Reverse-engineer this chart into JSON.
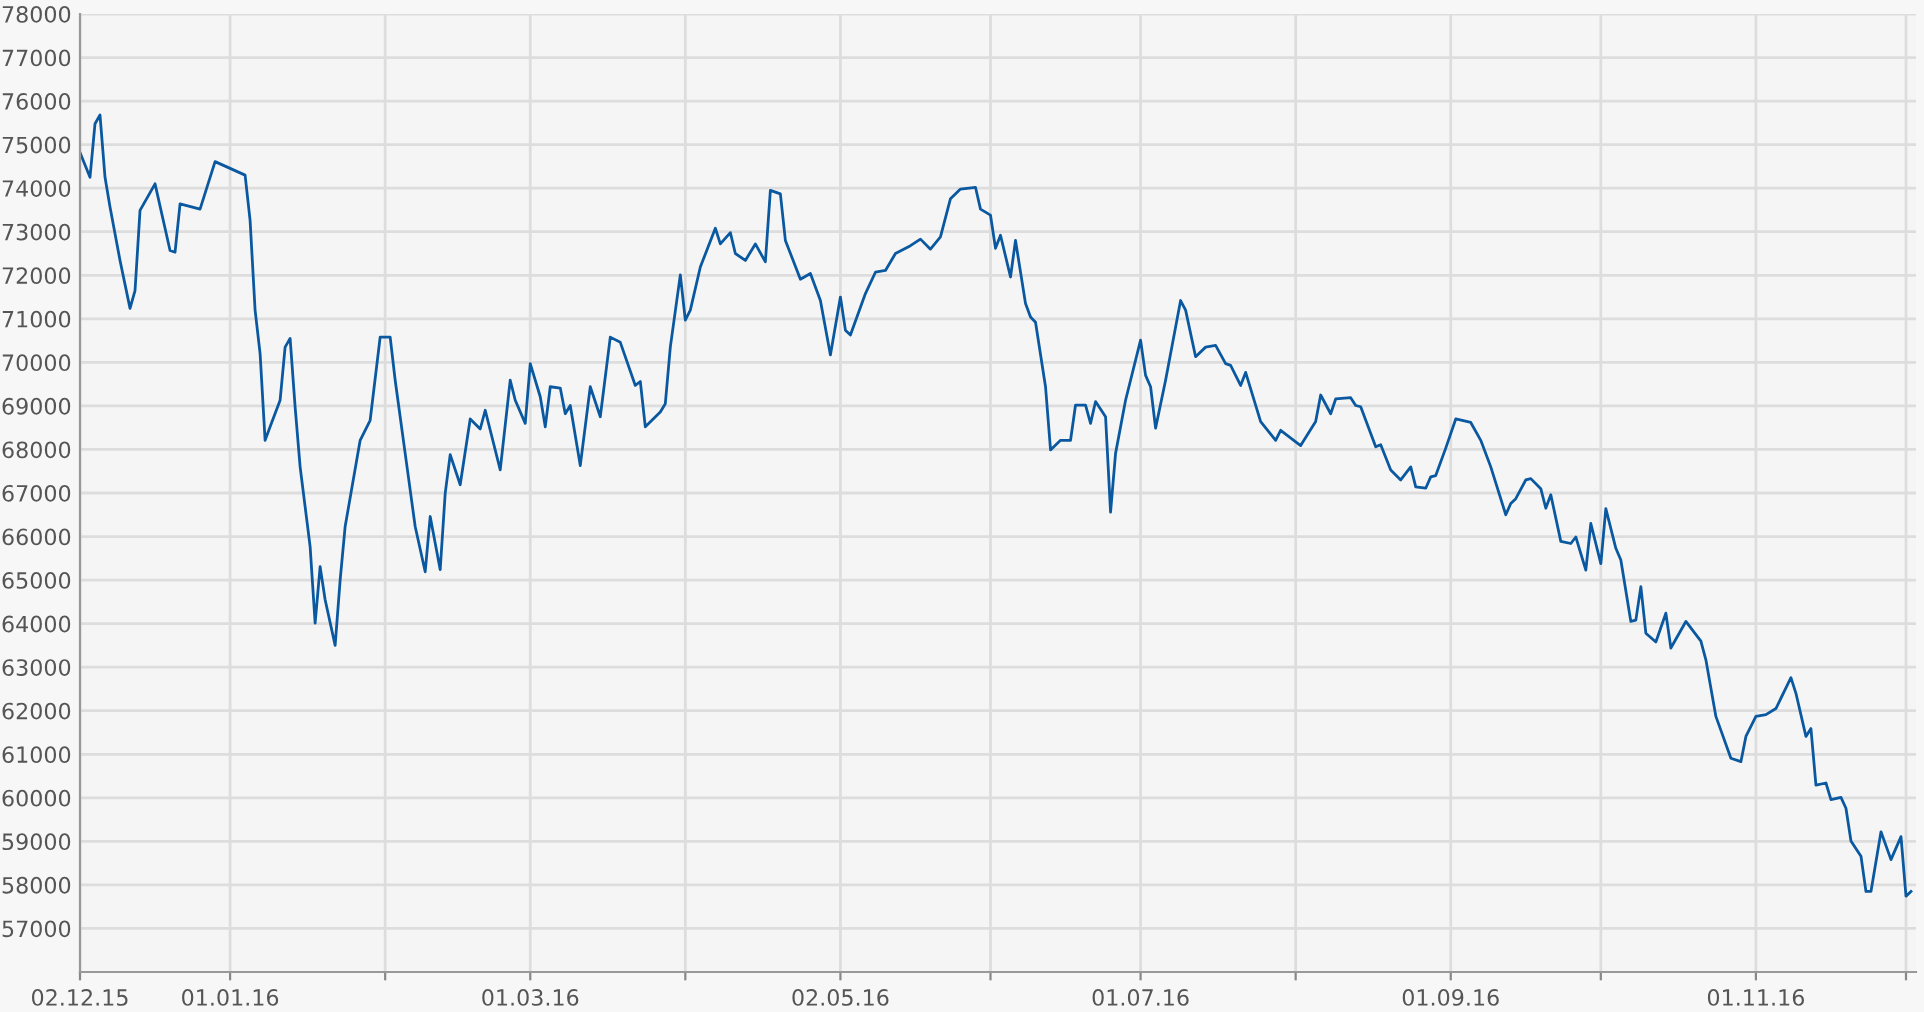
{
  "chart_data": {
    "type": "line",
    "x": [
      "2015-12-02",
      "2015-12-04",
      "2015-12-05",
      "2015-12-06",
      "2015-12-07",
      "2015-12-08",
      "2015-12-10",
      "2015-12-12",
      "2015-12-13",
      "2015-12-14",
      "2015-12-17",
      "2015-12-20",
      "2015-12-21",
      "2015-12-22",
      "2015-12-26",
      "2015-12-29",
      "2016-01-04",
      "2016-01-05",
      "2016-01-06",
      "2016-01-07",
      "2016-01-08",
      "2016-01-09",
      "2016-01-11",
      "2016-01-12",
      "2016-01-13",
      "2016-01-14",
      "2016-01-15",
      "2016-01-17",
      "2016-01-18",
      "2016-01-19",
      "2016-01-20",
      "2016-01-22",
      "2016-01-23",
      "2016-01-24",
      "2016-01-27",
      "2016-01-29",
      "2016-01-31",
      "2016-02-02",
      "2016-02-03",
      "2016-02-05",
      "2016-02-07",
      "2016-02-09",
      "2016-02-10",
      "2016-02-12",
      "2016-02-13",
      "2016-02-14",
      "2016-02-16",
      "2016-02-18",
      "2016-02-20",
      "2016-02-21",
      "2016-02-24",
      "2016-02-26",
      "2016-02-27",
      "2016-02-29",
      "2016-03-01",
      "2016-03-03",
      "2016-03-04",
      "2016-03-05",
      "2016-03-07",
      "2016-03-08",
      "2016-03-09",
      "2016-03-11",
      "2016-03-13",
      "2016-03-15",
      "2016-03-17",
      "2016-03-19",
      "2016-03-22",
      "2016-03-23",
      "2016-03-24",
      "2016-03-27",
      "2016-03-28",
      "2016-03-29",
      "2016-03-31",
      "2016-04-01",
      "2016-04-02",
      "2016-04-04",
      "2016-04-07",
      "2016-04-08",
      "2016-04-10",
      "2016-04-11",
      "2016-04-13",
      "2016-04-15",
      "2016-04-17",
      "2016-04-18",
      "2016-04-20",
      "2016-04-21",
      "2016-04-24",
      "2016-04-26",
      "2016-04-28",
      "2016-04-30",
      "2016-05-02",
      "2016-05-03",
      "2016-05-04",
      "2016-05-07",
      "2016-05-09",
      "2016-05-11",
      "2016-05-13",
      "2016-05-16",
      "2016-05-18",
      "2016-05-20",
      "2016-05-22",
      "2016-05-24",
      "2016-05-26",
      "2016-05-29",
      "2016-05-30",
      "2016-06-01",
      "2016-06-02",
      "2016-06-03",
      "2016-06-05",
      "2016-06-06",
      "2016-06-08",
      "2016-06-09",
      "2016-06-10",
      "2016-06-12",
      "2016-06-13",
      "2016-06-15",
      "2016-06-17",
      "2016-06-18",
      "2016-06-20",
      "2016-06-21",
      "2016-06-22",
      "2016-06-24",
      "2016-06-25",
      "2016-06-26",
      "2016-06-28",
      "2016-07-01",
      "2016-07-02",
      "2016-07-03",
      "2016-07-04",
      "2016-07-06",
      "2016-07-09",
      "2016-07-10",
      "2016-07-12",
      "2016-07-14",
      "2016-07-16",
      "2016-07-18",
      "2016-07-19",
      "2016-07-21",
      "2016-07-22",
      "2016-07-25",
      "2016-07-28",
      "2016-07-29",
      "2016-08-02",
      "2016-08-05",
      "2016-08-06",
      "2016-08-08",
      "2016-08-09",
      "2016-08-12",
      "2016-08-13",
      "2016-08-14",
      "2016-08-17",
      "2016-08-18",
      "2016-08-20",
      "2016-08-22",
      "2016-08-24",
      "2016-08-25",
      "2016-08-27",
      "2016-08-28",
      "2016-08-29",
      "2016-08-31",
      "2016-09-02",
      "2016-09-05",
      "2016-09-07",
      "2016-09-09",
      "2016-09-12",
      "2016-09-13",
      "2016-09-14",
      "2016-09-16",
      "2016-09-17",
      "2016-09-19",
      "2016-09-20",
      "2016-09-21",
      "2016-09-23",
      "2016-09-25",
      "2016-09-26",
      "2016-09-28",
      "2016-09-29",
      "2016-10-01",
      "2016-10-02",
      "2016-10-04",
      "2016-10-05",
      "2016-10-07",
      "2016-10-08",
      "2016-10-09",
      "2016-10-10",
      "2016-10-12",
      "2016-10-14",
      "2016-10-15",
      "2016-10-18",
      "2016-10-21",
      "2016-10-22",
      "2016-10-24",
      "2016-10-27",
      "2016-10-29",
      "2016-10-30",
      "2016-11-01",
      "2016-11-03",
      "2016-11-05",
      "2016-11-08",
      "2016-11-09",
      "2016-11-11",
      "2016-11-12",
      "2016-11-13",
      "2016-11-15",
      "2016-11-16",
      "2016-11-18",
      "2016-11-19",
      "2016-11-20",
      "2016-11-22",
      "2016-11-23",
      "2016-11-24",
      "2016-11-26",
      "2016-11-28",
      "2016-11-30",
      "2016-12-01",
      "2016-12-02"
    ],
    "series": [
      {
        "color": "#0a58a0",
        "values": [
          74820,
          74250,
          75480,
          75680,
          74250,
          73570,
          72340,
          71240,
          71650,
          73490,
          74100,
          72570,
          72530,
          73640,
          73520,
          74610,
          74300,
          73260,
          71200,
          70200,
          68210,
          68520,
          69130,
          70350,
          70550,
          68980,
          67600,
          65770,
          64010,
          65310,
          64550,
          63500,
          65000,
          66230,
          68210,
          68670,
          70580,
          70580,
          69590,
          67910,
          66230,
          65190,
          66460,
          65240,
          66990,
          67880,
          67190,
          68700,
          68470,
          68900,
          67530,
          69590,
          69130,
          68600,
          69970,
          69210,
          68520,
          69440,
          69410,
          68820,
          69010,
          67630,
          69440,
          68750,
          70580,
          70460,
          69470,
          69560,
          68520,
          68860,
          69050,
          70350,
          72010,
          70970,
          71200,
          72190,
          73080,
          72720,
          72980,
          72500,
          72340,
          72720,
          72310,
          73950,
          73870,
          72800,
          71910,
          72040,
          71420,
          70170,
          71500,
          70740,
          70630,
          71580,
          72070,
          72110,
          72500,
          72680,
          72830,
          72600,
          72880,
          73760,
          73980,
          74020,
          73520,
          73380,
          72620,
          72920,
          71960,
          72800,
          71350,
          71040,
          70920,
          69440,
          67990,
          68210,
          68210,
          69020,
          69020,
          68600,
          69100,
          68750,
          66560,
          67910,
          69130,
          70510,
          69700,
          69440,
          68490,
          69590,
          71420,
          71200,
          70130,
          70350,
          70390,
          69970,
          69930,
          69470,
          69770,
          68640,
          68210,
          68440,
          68090,
          68640,
          69250,
          68820,
          69160,
          69190,
          69010,
          68980,
          68060,
          68110,
          67530,
          67300,
          67600,
          67140,
          67110,
          67370,
          67400,
          68030,
          68700,
          68620,
          68210,
          67600,
          66500,
          66760,
          66870,
          67300,
          67330,
          67100,
          66650,
          66960,
          65890,
          65840,
          65990,
          65230,
          66300,
          65380,
          66640,
          65730,
          65460,
          64050,
          64080,
          64850,
          63780,
          63580,
          64240,
          63440,
          64050,
          63600,
          63170,
          61870,
          60910,
          60830,
          61410,
          61870,
          61910,
          62050,
          62760,
          62400,
          61410,
          61590,
          60290,
          60340,
          59960,
          60010,
          59760,
          59010,
          58660,
          57850,
          57850,
          59220,
          58580,
          59110,
          57740,
          57850
        ]
      }
    ],
    "xlim": [
      "2015-12-02",
      "2016-12-03"
    ],
    "xticks": [
      {
        "value": "2015-12-02",
        "label": "02.12.15"
      },
      {
        "value": "2016-01-01",
        "label": "01.01.16"
      },
      {
        "value": "2016-02-01",
        "label": null
      },
      {
        "value": "2016-03-01",
        "label": "01.03.16"
      },
      {
        "value": "2016-04-01",
        "label": null
      },
      {
        "value": "2016-05-02",
        "label": "02.05.16"
      },
      {
        "value": "2016-06-01",
        "label": null
      },
      {
        "value": "2016-07-01",
        "label": "01.07.16"
      },
      {
        "value": "2016-08-01",
        "label": null
      },
      {
        "value": "2016-09-01",
        "label": "01.09.16"
      },
      {
        "value": "2016-10-01",
        "label": null
      },
      {
        "value": "2016-11-01",
        "label": "01.11.16"
      },
      {
        "value": "2016-12-01",
        "label": null
      }
    ],
    "ylim": [
      56000,
      78000
    ],
    "yticks": [
      57000,
      58000,
      59000,
      60000,
      61000,
      62000,
      63000,
      64000,
      65000,
      66000,
      67000,
      68000,
      69000,
      70000,
      71000,
      72000,
      73000,
      74000,
      75000,
      76000,
      77000,
      78000
    ],
    "grid": true,
    "marker": "none",
    "line_style": "solid"
  }
}
